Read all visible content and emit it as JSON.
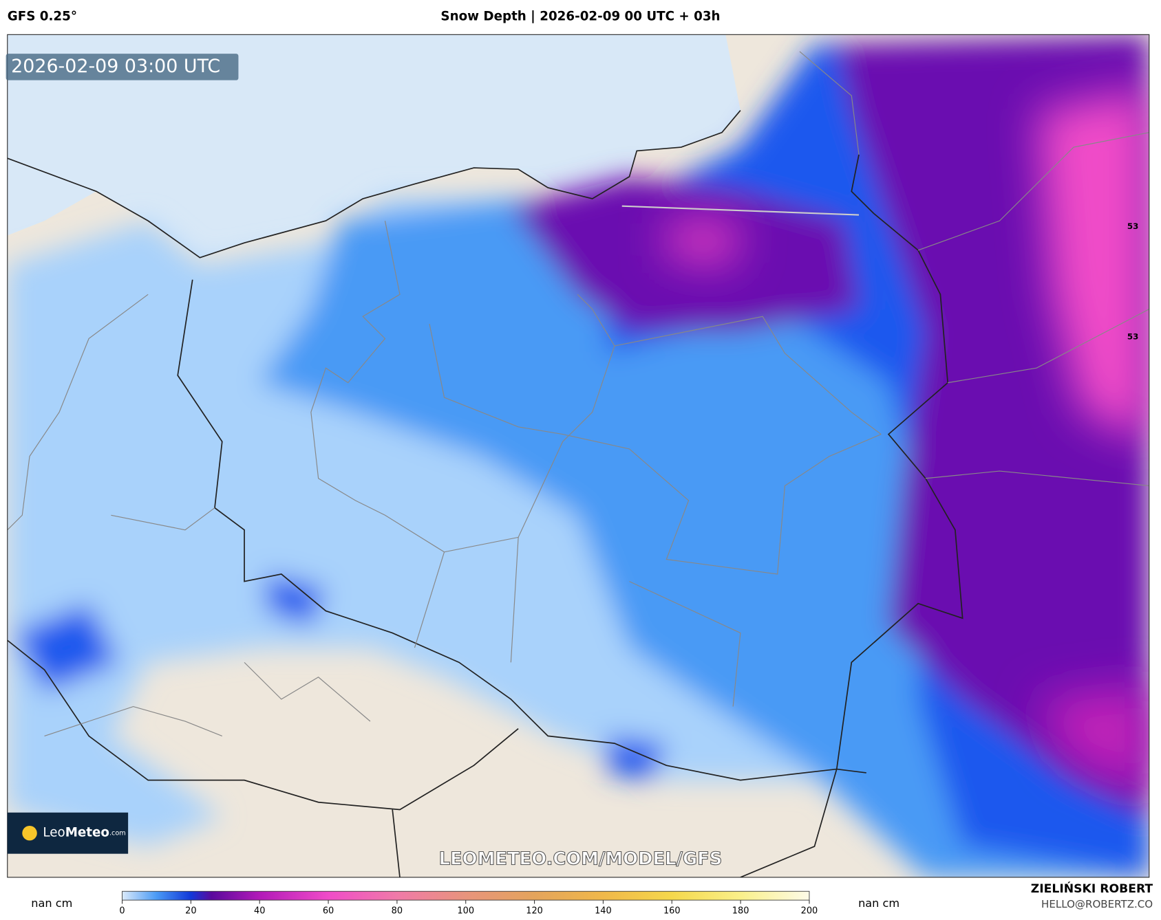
{
  "header": {
    "model": "GFS 0.25°",
    "title": "Snow Depth | 2026-02-09 00 UTC + 03h"
  },
  "map": {
    "timestamp": "2026-02-09 03:00 UTC",
    "latitude_labels": [
      "53",
      "53"
    ],
    "watermark": "LEOMETEO.COM/MODEL/GFS",
    "logo": {
      "name": "Leo",
      "bold": "Meteo",
      "suffix": ".com"
    }
  },
  "colorbar": {
    "left_label": "nan cm",
    "right_label": "nan cm",
    "ticks": [
      0,
      20,
      40,
      60,
      80,
      100,
      120,
      140,
      160,
      180,
      200
    ]
  },
  "credit": {
    "author": "ZIELIŃSKI ROBERT",
    "email": "HELLO@ROBERTZ.CO"
  }
}
